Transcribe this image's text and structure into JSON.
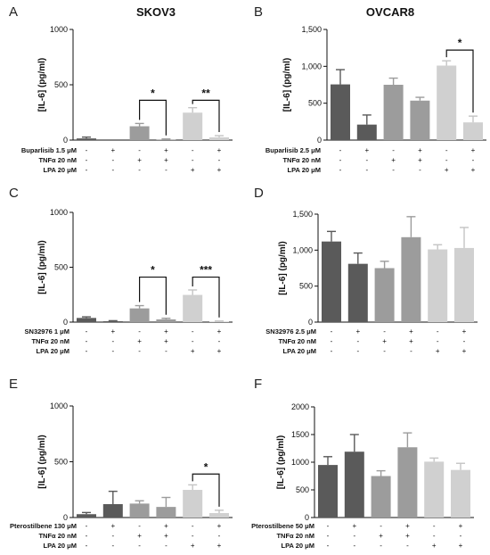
{
  "columns": [
    "SKOV3",
    "OVCAR8"
  ],
  "colors": [
    "#5a5a5a",
    "#5a5a5a",
    "#9c9c9c",
    "#9c9c9c",
    "#d0d0d0",
    "#d0d0d0"
  ],
  "chart_data": [
    {
      "panel": "A",
      "type": "bar",
      "title": "SKOV3",
      "ylabel": "[IL-6] (pg/ml)",
      "ylim": [
        0,
        1000
      ],
      "yticks": [
        "0",
        "500",
        "1000"
      ],
      "ytick_values": [
        0,
        500,
        1000
      ],
      "values": [
        15,
        0,
        125,
        5,
        248,
        25
      ],
      "errors": [
        12,
        0,
        25,
        5,
        45,
        15
      ],
      "conditions": [
        {
          "label": "Buparlisib 1.5 μM",
          "marks": [
            "-",
            "+",
            "-",
            "+",
            "-",
            "+"
          ]
        },
        {
          "label": "TNFα 20 nM",
          "marks": [
            "-",
            "-",
            "+",
            "+",
            "-",
            "-"
          ]
        },
        {
          "label": "LPA 20 μM",
          "marks": [
            "-",
            "-",
            "-",
            "-",
            "+",
            "+"
          ]
        }
      ],
      "significance": [
        {
          "from": 2,
          "to": 3,
          "label": "*",
          "level": 360
        },
        {
          "from": 4,
          "to": 5,
          "label": "**",
          "level": 360
        }
      ]
    },
    {
      "panel": "B",
      "type": "bar",
      "title": "OVCAR8",
      "ylabel": "[IL-6] (pg/ml)",
      "ylim": [
        0,
        1500
      ],
      "yticks": [
        "0",
        "500",
        "1,000",
        "1,500"
      ],
      "ytick_values": [
        0,
        500,
        1000,
        1500
      ],
      "values": [
        755,
        210,
        750,
        535,
        1010,
        240
      ],
      "errors": [
        200,
        130,
        90,
        45,
        65,
        85
      ],
      "conditions": [
        {
          "label": "Buparlisib 2.5 μM",
          "marks": [
            "-",
            "+",
            "-",
            "+",
            "-",
            "+"
          ]
        },
        {
          "label": "TNFα 20 nM",
          "marks": [
            "-",
            "-",
            "+",
            "+",
            "-",
            "-"
          ]
        },
        {
          "label": "LPA 20 μM",
          "marks": [
            "-",
            "-",
            "-",
            "-",
            "+",
            "+"
          ]
        }
      ],
      "significance": [
        {
          "from": 4,
          "to": 5,
          "label": "*",
          "level": 1220
        }
      ]
    },
    {
      "panel": "C",
      "type": "bar",
      "title": "",
      "ylabel": "[IL-6] (pg/ml)",
      "ylim": [
        0,
        1000
      ],
      "yticks": [
        "0",
        "500",
        "1000"
      ],
      "ytick_values": [
        0,
        500,
        1000
      ],
      "values": [
        38,
        8,
        125,
        25,
        248,
        5
      ],
      "errors": [
        10,
        5,
        25,
        10,
        45,
        5
      ],
      "conditions": [
        {
          "label": "SN32976 1 μM",
          "marks": [
            "-",
            "+",
            "-",
            "+",
            "-",
            "+"
          ]
        },
        {
          "label": "TNFα 20 nM",
          "marks": [
            "-",
            "-",
            "+",
            "+",
            "-",
            "-"
          ]
        },
        {
          "label": "LPA 20 μM",
          "marks": [
            "-",
            "-",
            "-",
            "-",
            "+",
            "+"
          ]
        }
      ],
      "significance": [
        {
          "from": 2,
          "to": 3,
          "label": "*",
          "level": 410
        },
        {
          "from": 4,
          "to": 5,
          "label": "***",
          "level": 410
        }
      ]
    },
    {
      "panel": "D",
      "type": "bar",
      "title": "",
      "ylabel": "[IL-6] (pg/ml)",
      "ylim": [
        0,
        1500
      ],
      "yticks": [
        "0",
        "500",
        "1,000",
        "1,500"
      ],
      "ytick_values": [
        0,
        500,
        1000,
        1500
      ],
      "values": [
        1120,
        810,
        750,
        1180,
        1010,
        1030
      ],
      "errors": [
        140,
        150,
        95,
        285,
        65,
        285
      ],
      "conditions": [
        {
          "label": "SN32976 2.5 μM",
          "marks": [
            "-",
            "+",
            "-",
            "+",
            "-",
            "+"
          ]
        },
        {
          "label": "TNFα 20 nM",
          "marks": [
            "-",
            "-",
            "+",
            "+",
            "-",
            "-"
          ]
        },
        {
          "label": "LPA 20 μM",
          "marks": [
            "-",
            "-",
            "-",
            "-",
            "+",
            "+"
          ]
        }
      ],
      "significance": []
    },
    {
      "panel": "E",
      "type": "bar",
      "title": "",
      "ylabel": "[IL-6] (pg/ml)",
      "ylim": [
        0,
        1000
      ],
      "yticks": [
        "0",
        "500",
        "1000"
      ],
      "ytick_values": [
        0,
        500,
        1000
      ],
      "values": [
        30,
        120,
        125,
        95,
        248,
        40
      ],
      "errors": [
        15,
        115,
        25,
        85,
        45,
        25
      ],
      "conditions": [
        {
          "label": "Pterostilbene 130 μM",
          "marks": [
            "-",
            "+",
            "-",
            "+",
            "-",
            "+"
          ]
        },
        {
          "label": "TNFα 20 nM",
          "marks": [
            "-",
            "-",
            "+",
            "+",
            "-",
            "-"
          ]
        },
        {
          "label": "LPA 20 μM",
          "marks": [
            "-",
            "-",
            "-",
            "-",
            "+",
            "+"
          ]
        }
      ],
      "significance": [
        {
          "from": 4,
          "to": 5,
          "label": "*",
          "level": 390
        }
      ]
    },
    {
      "panel": "F",
      "type": "bar",
      "title": "",
      "ylabel": "[IL-6] (pg/ml)",
      "ylim": [
        0,
        2000
      ],
      "yticks": [
        "0",
        "500",
        "1000",
        "1500",
        "2000"
      ],
      "ytick_values": [
        0,
        500,
        1000,
        1500,
        2000
      ],
      "values": [
        950,
        1190,
        750,
        1270,
        1010,
        860
      ],
      "errors": [
        150,
        310,
        95,
        260,
        65,
        120
      ],
      "conditions": [
        {
          "label": "Pterostilbene 50 μM",
          "marks": [
            "-",
            "+",
            "-",
            "+",
            "-",
            "+"
          ]
        },
        {
          "label": "TNFα 20 nM",
          "marks": [
            "-",
            "-",
            "+",
            "+",
            "-",
            "-"
          ]
        },
        {
          "label": "LPA 20 μM",
          "marks": [
            "-",
            "-",
            "-",
            "-",
            "+",
            "+"
          ]
        }
      ],
      "significance": []
    }
  ]
}
